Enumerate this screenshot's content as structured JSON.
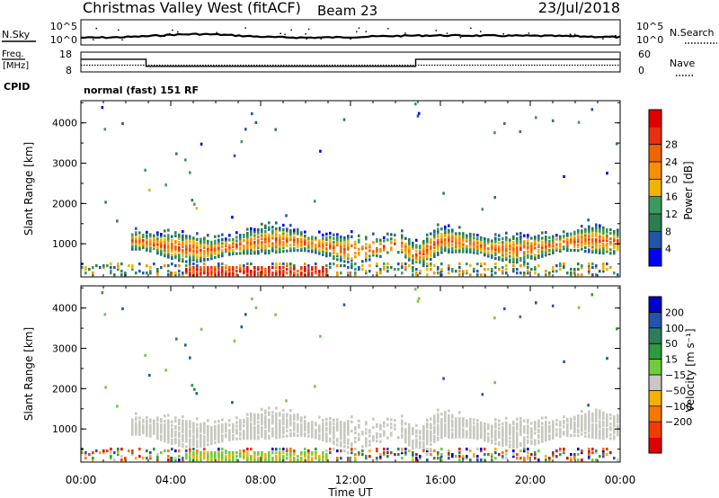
{
  "header": {
    "station": "Christmas Valley West (fitACF)",
    "beam": "Beam 23",
    "date": "23/Jul/2018"
  },
  "noise": {
    "left_label": "N.Sky",
    "right_label": "N.Search",
    "ticks": [
      "10^5",
      "10^0"
    ]
  },
  "freq": {
    "left_label_1": "Freq.",
    "left_label_2": "[MHz]",
    "left_ticks": [
      "18",
      "8"
    ],
    "right_label": "Nave",
    "right_ticks": [
      "60",
      "0"
    ],
    "cpid_label": "CPID",
    "cpid_value": "normal (fast) 151 RF"
  },
  "colors": {
    "power": [
      "#0000ff",
      "#2255aa",
      "#2e7d4f",
      "#3c9a5f",
      "#f0b400",
      "#f79000",
      "#f06400",
      "#e83010",
      "#e00000"
    ],
    "velocity": [
      "#e00000",
      "#f03c00",
      "#f77800",
      "#f5b000",
      "#c8c8c0",
      "#6fcc3c",
      "#2e9a3e",
      "#2e7d5a",
      "#2255aa",
      "#0000cc"
    ],
    "ground": "#c8c8c0"
  },
  "chart_data": [
    {
      "type": "heatmap",
      "title": "",
      "xlabel": "",
      "ylabel": "Slant Range [km]",
      "x_ticks": [
        "00:00",
        "04:00",
        "08:00",
        "12:00",
        "16:00",
        "20:00",
        "00:00"
      ],
      "xlim_hours": [
        0,
        24
      ],
      "y_ticks": [
        "1000",
        "2000",
        "3000",
        "4000"
      ],
      "ylim": [
        180,
        4550
      ],
      "colorbar": {
        "label": "Power [dB]",
        "ticks": [
          "4",
          "8",
          "12",
          "16",
          "20",
          "24",
          "28"
        ],
        "range": [
          0,
          30
        ]
      }
    },
    {
      "type": "heatmap",
      "title": "",
      "xlabel": "Time UT",
      "ylabel": "Slant Range [km]",
      "x_ticks": [
        "00:00",
        "04:00",
        "08:00",
        "12:00",
        "16:00",
        "20:00",
        "00:00"
      ],
      "xlim_hours": [
        0,
        24
      ],
      "y_ticks": [
        "1000",
        "2000",
        "3000",
        "4000"
      ],
      "ylim": [
        180,
        4550
      ],
      "colorbar": {
        "label": "Velocity [m s⁻¹]",
        "ticks": [
          "200",
          "100",
          "50",
          "15",
          "−15",
          "−50",
          "−100",
          "−200"
        ],
        "range": [
          -250,
          250
        ]
      }
    },
    {
      "type": "line",
      "name": "frequency",
      "ylim": [
        8,
        18
      ],
      "x": [
        0,
        2.9,
        2.9,
        14.9,
        14.9,
        24
      ],
      "y": [
        14.4,
        14.4,
        10.8,
        10.8,
        14.4,
        14.4
      ]
    }
  ]
}
